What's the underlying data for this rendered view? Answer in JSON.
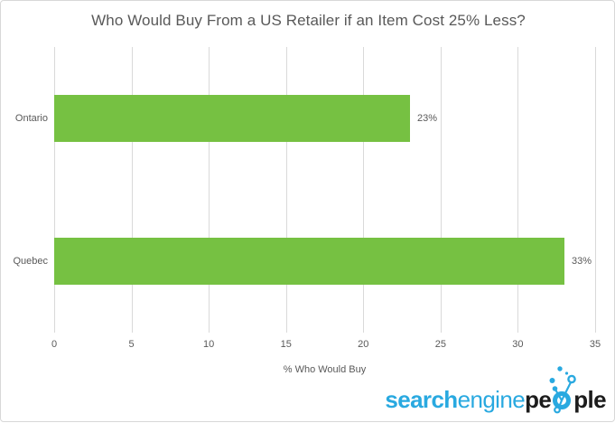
{
  "chart_data": {
    "type": "bar",
    "orientation": "horizontal",
    "title": "Who Would Buy From a US Retailer if an Item Cost 25% Less?",
    "xlabel": "% Who Would Buy",
    "categories": [
      "Ontario",
      "Quebec"
    ],
    "values": [
      23,
      33
    ],
    "data_labels": [
      "23%",
      "33%"
    ],
    "xlim": [
      0,
      35
    ],
    "x_ticks": [
      0,
      5,
      10,
      15,
      20,
      25,
      30,
      35
    ],
    "grid": "vertical",
    "legend": "none"
  },
  "colors": {
    "bar_fill": "#76C142",
    "text_gray": "#595959",
    "gridline": "#D9D9D9",
    "frame_border": "#D8D8D8",
    "background": "#FFFFFF",
    "logo_blue": "#29A9E0",
    "logo_dark": "#1C1C1C"
  },
  "logo": {
    "search": "search",
    "engine": "engine",
    "pe": "pe",
    "ple": "ple",
    "icon": "network-o-icon"
  }
}
